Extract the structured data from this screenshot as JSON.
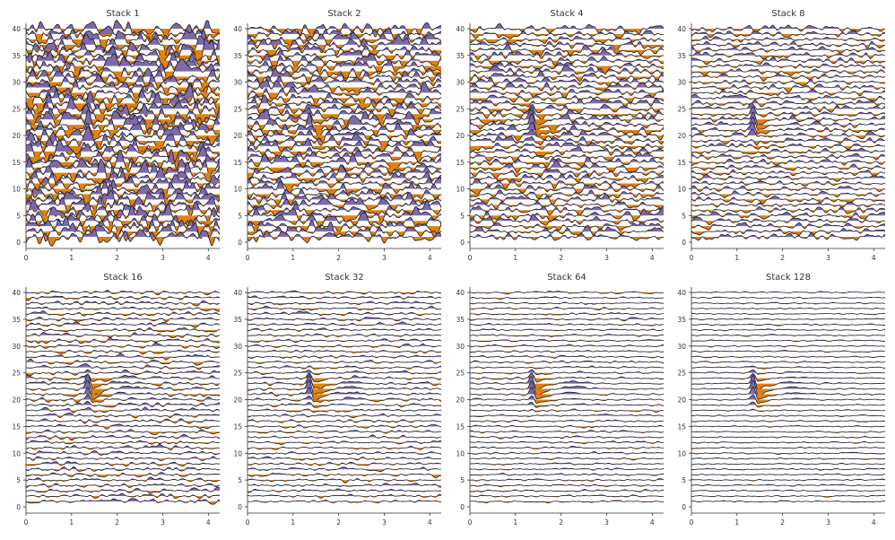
{
  "chart_data": [
    {
      "type": "line",
      "title": "Stack 1",
      "stack": 1
    },
    {
      "type": "line",
      "title": "Stack 2",
      "stack": 2
    },
    {
      "type": "line",
      "title": "Stack 4",
      "stack": 4
    },
    {
      "type": "line",
      "title": "Stack 8",
      "stack": 8
    },
    {
      "type": "line",
      "title": "Stack 16",
      "stack": 16
    },
    {
      "type": "line",
      "title": "Stack 32",
      "stack": 32
    },
    {
      "type": "line",
      "title": "Stack 64",
      "stack": 64
    },
    {
      "type": "line",
      "title": "Stack 128",
      "stack": 128
    }
  ],
  "shared": {
    "plot_style": "wiggle traces, positive fill and negative fill",
    "xlim": [
      0,
      4.25
    ],
    "ylim": [
      -0.5,
      40.5
    ],
    "xticks": [
      "0",
      "1",
      "2",
      "3",
      "4"
    ],
    "yticks": [
      "0",
      "5",
      "10",
      "15",
      "20",
      "25",
      "30",
      "35",
      "40"
    ],
    "trace_offsets_from": 1,
    "trace_offsets_to": 40,
    "signal_x": 1.35,
    "signal_traces": [
      19,
      20,
      21,
      22,
      23,
      24
    ],
    "grid": false,
    "colors": {
      "positive_fill": "#7d6aa8",
      "negative_fill": "#e0820f",
      "line": "#1c1a2a",
      "axis": "#333333"
    }
  }
}
